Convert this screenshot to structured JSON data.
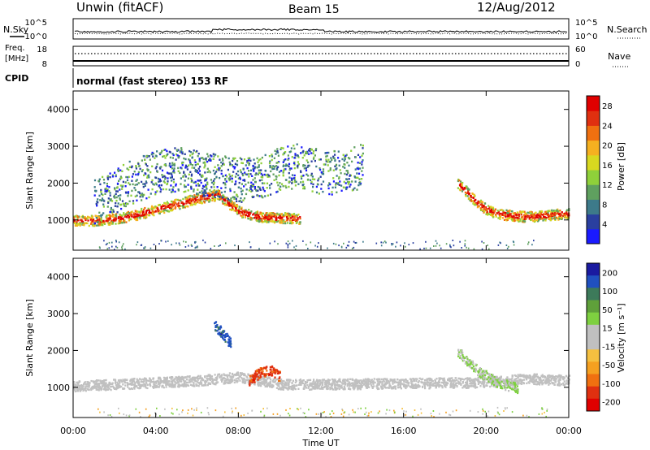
{
  "header": {
    "station": "Unwin (fitACF)",
    "beam": "Beam 15",
    "date": "12/Aug/2012"
  },
  "status_panels": {
    "nsky_label": "N.Sky",
    "nsearch_label": "N.Search",
    "noise_ticks_left": [
      "10^5",
      "10^0"
    ],
    "noise_ticks_right": [
      "10^5",
      "10^0"
    ],
    "freq_label_line1": "Freq.",
    "freq_label_line2": "[MHz]",
    "freq_ticks": [
      "18",
      "8"
    ],
    "nave_label": "Nave",
    "nave_ticks": [
      "60",
      "0"
    ],
    "cpid_label": "CPID",
    "cpid_text": "normal (fast stereo) 153 RF"
  },
  "chart_data": [
    {
      "type": "heatmap",
      "title": "",
      "xlabel": "",
      "ylabel": "Slant Range [km]",
      "xlim_hours": [
        0,
        24
      ],
      "ylim_km": [
        180,
        4500
      ],
      "y_ticks": [
        "1000",
        "2000",
        "3000",
        "4000"
      ],
      "colorbar": {
        "label": "Power [dB]",
        "ticks": [
          "4",
          "8",
          "12",
          "16",
          "20",
          "24",
          "28"
        ],
        "range": [
          0,
          30
        ],
        "colors": [
          "#1a1aff",
          "#2a3f9f",
          "#3d7a8a",
          "#5fa05f",
          "#8fd03a",
          "#d8d820",
          "#f5b020",
          "#f07010",
          "#e03010",
          "#e00000"
        ]
      },
      "series": [
        {
          "name": "main band",
          "x": [
            0,
            1,
            2,
            3,
            4,
            5,
            6,
            7,
            8,
            9,
            10,
            11
          ],
          "y": [
            1000,
            1000,
            1050,
            1150,
            1300,
            1450,
            1600,
            1700,
            1250,
            1100,
            1080,
            1050
          ],
          "value": 20
        },
        {
          "name": "upper scatter",
          "x": [
            1,
            2,
            3,
            4,
            5,
            6,
            7,
            8,
            9,
            10,
            11,
            12,
            13,
            14
          ],
          "y": [
            1500,
            1800,
            2100,
            2300,
            2400,
            2300,
            2200,
            2100,
            2200,
            2400,
            2500,
            2300,
            2300,
            2500
          ],
          "value": 8
        },
        {
          "name": "evening band",
          "x": [
            18.6,
            19,
            19.5,
            20,
            20.5,
            21,
            22,
            23,
            24
          ],
          "y": [
            2000,
            1800,
            1500,
            1300,
            1200,
            1150,
            1100,
            1150,
            1200
          ],
          "value": 20
        }
      ]
    },
    {
      "type": "heatmap",
      "title": "",
      "xlabel": "Time UT",
      "ylabel": "Slant Range [km]",
      "xlim_hours": [
        0,
        24
      ],
      "ylim_km": [
        180,
        4500
      ],
      "x_ticks": [
        "00:00",
        "04:00",
        "08:00",
        "12:00",
        "16:00",
        "20:00",
        "00:00"
      ],
      "y_ticks": [
        "1000",
        "2000",
        "3000",
        "4000"
      ],
      "colorbar": {
        "label": "Velocity [m s⁻¹]",
        "ticks": [
          "200",
          "100",
          "50",
          "15",
          "-15",
          "-50",
          "-100",
          "-200"
        ],
        "range": [
          -250,
          250
        ],
        "colors": [
          "#1a1aa0",
          "#2050c0",
          "#3d7a5a",
          "#5fa03a",
          "#7ed040",
          "#c0c0c0",
          "#c0c0c0",
          "#f5c040",
          "#f5a020",
          "#f07010",
          "#e03010",
          "#e00000"
        ]
      },
      "series": [
        {
          "name": "ground scatter",
          "x": [
            0,
            2,
            4,
            6,
            8,
            10,
            12,
            20,
            22,
            24
          ],
          "y": [
            1050,
            1100,
            1150,
            1200,
            1300,
            1100,
            1100,
            1150,
            1250,
            1200
          ],
          "value": 0
        },
        {
          "name": "westward patch",
          "x": [
            8.5,
            9,
            9.5,
            10
          ],
          "y": [
            1200,
            1400,
            1500,
            1300
          ],
          "value": -180
        },
        {
          "name": "eastward patch",
          "x": [
            6.8,
            7.2,
            7.6
          ],
          "y": [
            2700,
            2500,
            2200
          ],
          "value": 180
        },
        {
          "name": "evening green",
          "x": [
            18.6,
            19.5,
            20.5,
            21.5
          ],
          "y": [
            2000,
            1500,
            1150,
            1000
          ],
          "value": 40
        }
      ]
    }
  ]
}
